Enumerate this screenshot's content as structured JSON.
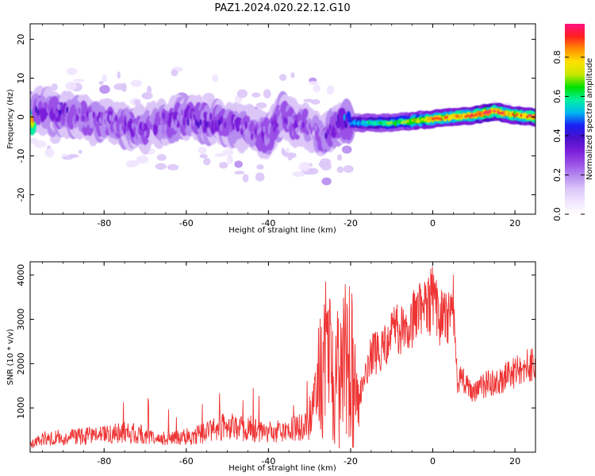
{
  "title": "PAZ1.2024.020.22.12.G10",
  "colors": {
    "snr_line": "#ee3333",
    "frame": "#000000",
    "colorscale": [
      "#ffffff",
      "#f0e4ff",
      "#dcc6f8",
      "#b68cf0",
      "#9a4fe6",
      "#7a1fd9",
      "#4a10c9",
      "#1a20f5",
      "#00b8f0",
      "#00f0a0",
      "#00e000",
      "#c8e800",
      "#ffe000",
      "#ff9000",
      "#ff2020",
      "#ff1080"
    ]
  },
  "chart_data": [
    {
      "type": "heatmap",
      "title": "PAZ1.2024.020.22.12.G10",
      "xlabel": "Height of straight line (km)",
      "ylabel": "Frequency (Hz)",
      "colorbar_label": "Normalized spectral amplitude",
      "xlim": [
        -98,
        25
      ],
      "ylim": [
        -25,
        24
      ],
      "zlim": [
        0,
        0.97
      ],
      "x_ticks": [
        -80,
        -60,
        -40,
        -20,
        0,
        20
      ],
      "y_ticks": [
        -20,
        -10,
        0,
        10,
        20
      ],
      "colorbar_ticks": [
        0.0,
        0.2,
        0.4,
        0.6,
        0.8
      ],
      "x_tick_labels": [
        "-80",
        "-60",
        "-40",
        "-20",
        "0",
        "20"
      ],
      "y_tick_labels": [
        "-20",
        "-10",
        "0",
        "10",
        "20"
      ],
      "colorbar_tick_labels": [
        "0.0",
        "0.2",
        "0.4",
        "0.6",
        "0.8"
      ],
      "ridge": {
        "height_km": [
          -97,
          -90,
          -85,
          -80,
          -75,
          -70,
          -65,
          -60,
          -55,
          -50,
          -45,
          -40,
          -37,
          -33,
          -30,
          -27,
          -23,
          -20,
          -15,
          -10,
          -5,
          0,
          5,
          10,
          15,
          20,
          25
        ],
        "frequency_hz": [
          2,
          1,
          0,
          -1,
          -2,
          -3,
          -1,
          0,
          -1,
          -2,
          -3,
          -5,
          1,
          -2,
          -2,
          -6,
          -1,
          -1.5,
          -1.5,
          -1.5,
          -1,
          -0.5,
          0,
          0.5,
          1.5,
          0.5,
          0
        ],
        "amplitude": [
          0.35,
          0.35,
          0.3,
          0.3,
          0.3,
          0.3,
          0.3,
          0.35,
          0.35,
          0.3,
          0.3,
          0.35,
          0.35,
          0.3,
          0.25,
          0.3,
          0.4,
          0.5,
          0.6,
          0.65,
          0.75,
          0.85,
          0.85,
          0.9,
          0.95,
          0.85,
          0.9
        ]
      }
    },
    {
      "type": "line",
      "xlabel": "Height of straight line (km)",
      "ylabel": "SNR (10 * v/v)",
      "xlim": [
        -98,
        25
      ],
      "ylim": [
        0,
        4300
      ],
      "x_ticks": [
        -80,
        -60,
        -40,
        -20,
        0,
        20
      ],
      "y_ticks": [
        1000,
        2000,
        3000,
        4000
      ],
      "x_tick_labels": [
        "-80",
        "-60",
        "-40",
        "-20",
        "0",
        "20"
      ],
      "y_tick_labels": [
        "1000",
        "2000",
        "3000",
        "4000"
      ],
      "series": [
        {
          "x": [
            -98,
            -95,
            -90,
            -85,
            -80,
            -75,
            -70,
            -65,
            -60,
            -55,
            -50,
            -45,
            -40,
            -35,
            -30,
            -28,
            -25,
            -22,
            -20,
            -18,
            -15,
            -12,
            -10,
            -8,
            -5,
            -3,
            -1,
            0,
            2,
            4,
            5,
            6,
            8,
            10,
            12,
            15,
            18,
            20,
            22,
            25
          ],
          "y": [
            150,
            300,
            350,
            350,
            400,
            450,
            400,
            300,
            350,
            450,
            600,
            550,
            450,
            500,
            600,
            1800,
            1800,
            1600,
            1400,
            1200,
            2200,
            2300,
            2900,
            2800,
            3000,
            3200,
            3300,
            3500,
            3000,
            3100,
            3300,
            1700,
            1600,
            1300,
            1500,
            1600,
            1700,
            1800,
            1950,
            2000
          ]
        }
      ]
    }
  ]
}
